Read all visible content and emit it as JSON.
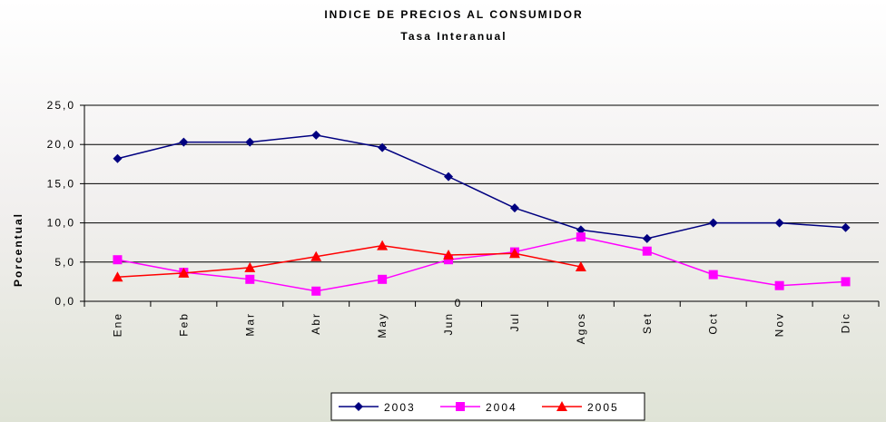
{
  "chart_data": {
    "type": "line",
    "title": "INDICE DE PRECIOS AL CONSUMIDOR",
    "subtitle": "Tasa Interanual",
    "y_label": "Porcentual",
    "annotations": [
      "0"
    ],
    "categories": [
      "Ene",
      "Feb",
      "Mar",
      "Abr",
      "May",
      "Jun",
      "Jul",
      "Agos",
      "Set",
      "Oct",
      "Nov",
      "Dic"
    ],
    "series": [
      {
        "name": "2003",
        "color": "#000080",
        "marker": "diamond",
        "values": [
          18.2,
          20.3,
          20.3,
          21.2,
          19.6,
          15.9,
          11.9,
          9.1,
          8.0,
          10.0,
          10.0,
          9.4
        ]
      },
      {
        "name": "2004",
        "color": "#ff00ff",
        "marker": "square",
        "values": [
          5.3,
          3.7,
          2.8,
          1.3,
          2.8,
          5.3,
          6.3,
          8.2,
          6.4,
          3.4,
          2.0,
          2.5
        ]
      },
      {
        "name": "2005",
        "color": "#ff0000",
        "marker": "triangle",
        "values": [
          3.1,
          3.6,
          4.3,
          5.7,
          7.1,
          5.9,
          6.1,
          4.4,
          null,
          null,
          null,
          null
        ]
      }
    ],
    "ylim": [
      0,
      25
    ],
    "yticks": [
      {
        "value": 0,
        "label": "0,0"
      },
      {
        "value": 5,
        "label": "5,0"
      },
      {
        "value": 10,
        "label": "10,0"
      },
      {
        "value": 15,
        "label": "15,0"
      },
      {
        "value": 20,
        "label": "20,0"
      },
      {
        "value": 25,
        "label": "25,0"
      }
    ],
    "grid": true,
    "legend": "bottom"
  }
}
